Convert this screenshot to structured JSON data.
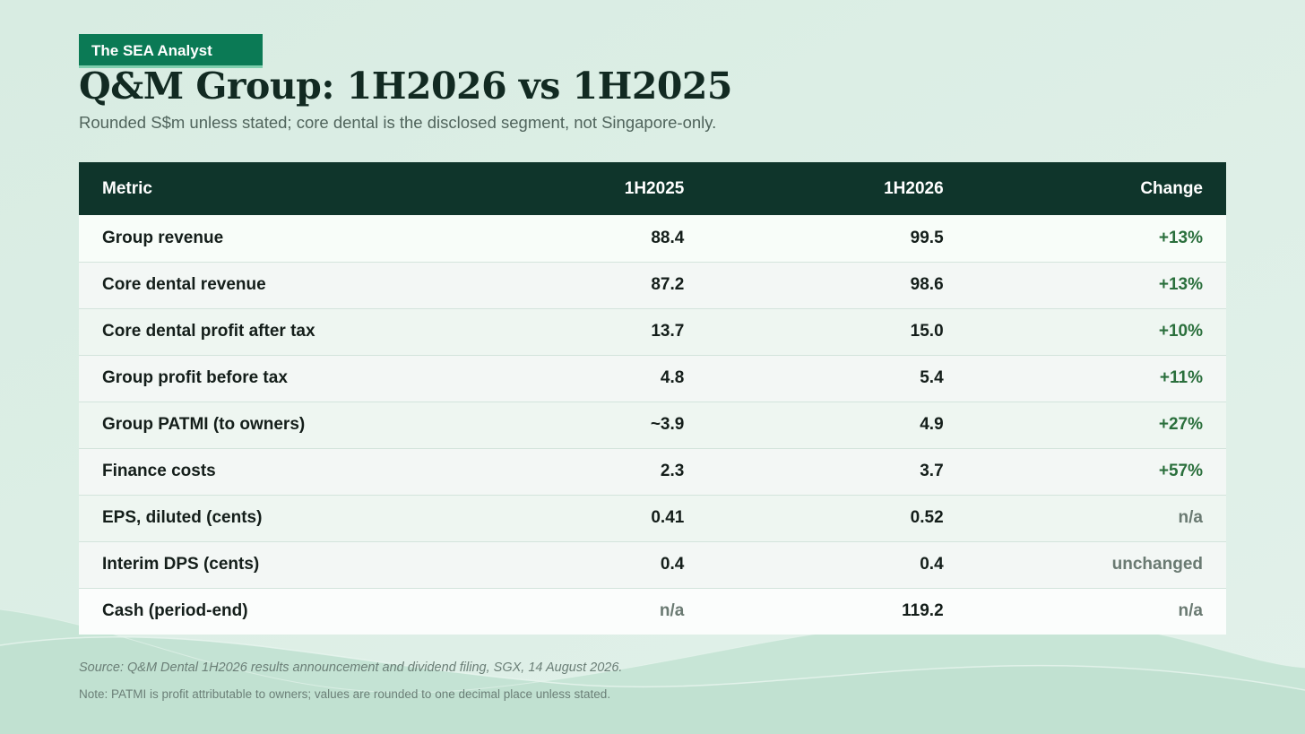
{
  "brand": {
    "tag": "The SEA Analyst"
  },
  "header": {
    "title": "Q&M Group: 1H2026 vs 1H2025",
    "subtitle": "Rounded S$m unless stated; core dental is the disclosed segment, not Singapore-only."
  },
  "table": {
    "columns": [
      "Metric",
      "1H2025",
      "1H2026",
      "Change"
    ],
    "rows": [
      {
        "metric": "Group revenue",
        "h2025": "88.4",
        "h2026": "99.5",
        "change": "+13%",
        "change_tone": "positive"
      },
      {
        "metric": "Core dental revenue",
        "h2025": "87.2",
        "h2026": "98.6",
        "change": "+13%",
        "change_tone": "positive"
      },
      {
        "metric": "Core dental profit after tax",
        "h2025": "13.7",
        "h2026": "15.0",
        "change": "+10%",
        "change_tone": "positive"
      },
      {
        "metric": "Group profit before tax",
        "h2025": "4.8",
        "h2026": "5.4",
        "change": "+11%",
        "change_tone": "positive"
      },
      {
        "metric": "Group PATMI (to owners)",
        "h2025": "~3.9",
        "h2026": "4.9",
        "change": "+27%",
        "change_tone": "positive"
      },
      {
        "metric": "Finance costs",
        "h2025": "2.3",
        "h2026": "3.7",
        "change": "+57%",
        "change_tone": "positive"
      },
      {
        "metric": "EPS, diluted (cents)",
        "h2025": "0.41",
        "h2026": "0.52",
        "change": "n/a",
        "change_tone": "muted"
      },
      {
        "metric": "Interim DPS (cents)",
        "h2025": "0.4",
        "h2026": "0.4",
        "change": "unchanged",
        "change_tone": "muted"
      },
      {
        "metric": "Cash (period-end)",
        "h2025": "n/a",
        "h2026": "119.2",
        "change": "n/a",
        "change_tone": "muted"
      }
    ]
  },
  "footer": {
    "source": "Source: Q&M Dental 1H2026 results announcement and dividend filing, SGX, 14 August 2026.",
    "note": "Note: PATMI is profit attributable to owners; values are rounded to one decimal place unless stated."
  },
  "colors": {
    "background": "#dcefe6",
    "brand_green": "#0b7a55",
    "header_dark": "#0f352b",
    "positive": "#2a6f3c",
    "muted": "#6a7a72"
  }
}
